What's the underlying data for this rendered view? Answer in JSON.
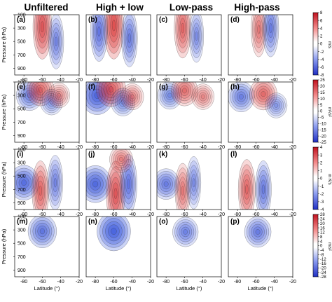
{
  "columns": [
    {
      "title": "Unfiltered"
    },
    {
      "title": "High + low"
    },
    {
      "title": "Low-pass"
    },
    {
      "title": "High-pass"
    }
  ],
  "panel_letters": [
    "(a)",
    "(b)",
    "(c)",
    "(d)",
    "(e)",
    "(f)",
    "(g)",
    "(h)",
    "(i)",
    "(j)",
    "(k)",
    "(l)",
    "(m)",
    "(n)",
    "(o)",
    "(p)"
  ],
  "y_axis_label": "Pressure (hPa)",
  "x_axis_label": "Latitude (°)",
  "x_ticks": [
    "-80",
    "-60",
    "-40",
    "-20"
  ],
  "y_ticks": [
    "100",
    "300",
    "500",
    "700",
    "900"
  ],
  "colors": {
    "positive": "#d62728",
    "negative": "#1f3fd6"
  },
  "chart_data": [
    {
      "type": "heatmap",
      "row": 1,
      "xlim": [
        -90,
        -20
      ],
      "ylim": [
        1000,
        100
      ],
      "colorbar": {
        "ticks": [
          "8",
          "6",
          "4",
          "2",
          "0",
          "-2",
          "-4",
          "-6",
          "-8"
        ],
        "unit": "m/s",
        "range": [
          -8,
          8
        ]
      },
      "panels": [
        {
          "letter": "(a)",
          "features": [
            {
              "lat": -60,
              "p": 280,
              "value": 7,
              "shape": "jet"
            },
            {
              "lat": -45,
              "p": 500,
              "value": -3,
              "shape": "jet"
            }
          ]
        },
        {
          "letter": "(b)",
          "features": [
            {
              "lat": -60,
              "p": 260,
              "value": 9,
              "shape": "jet"
            },
            {
              "lat": -76,
              "p": 350,
              "value": -5,
              "shape": "jet"
            },
            {
              "lat": -43,
              "p": 450,
              "value": -4,
              "shape": "jet"
            }
          ]
        },
        {
          "letter": "(c)",
          "features": [
            {
              "lat": -62,
              "p": 300,
              "value": 5,
              "shape": "jet"
            },
            {
              "lat": -47,
              "p": 420,
              "value": -2,
              "shape": "jet"
            }
          ]
        },
        {
          "letter": "(d)",
          "features": [
            {
              "lat": -57,
              "p": 320,
              "value": 3,
              "shape": "jet"
            },
            {
              "lat": -44,
              "p": 300,
              "value": -4,
              "shape": "jet"
            }
          ]
        }
      ]
    },
    {
      "type": "heatmap",
      "row": 2,
      "xlim": [
        -90,
        -20
      ],
      "ylim": [
        1000,
        100
      ],
      "colorbar": {
        "ticks": [
          "25",
          "20",
          "15",
          "10",
          "5",
          "0",
          "-5",
          "-10",
          "-15",
          "-20",
          "-25"
        ],
        "unit": "m²/s²",
        "range": [
          -25,
          25
        ]
      },
      "panels": [
        {
          "letter": "(e)",
          "features": [
            {
              "lat": -74,
              "p": 300,
              "value": -12,
              "shape": "blob"
            },
            {
              "lat": -62,
              "p": 220,
              "value": 14,
              "shape": "blob"
            },
            {
              "lat": -50,
              "p": 400,
              "value": -5,
              "shape": "blob"
            },
            {
              "lat": -42,
              "p": 300,
              "value": 4,
              "shape": "blob"
            }
          ]
        },
        {
          "letter": "(f)",
          "features": [
            {
              "lat": -78,
              "p": 300,
              "value": -24,
              "shape": "blob"
            },
            {
              "lat": -63,
              "p": 210,
              "value": 18,
              "shape": "blob"
            },
            {
              "lat": -50,
              "p": 400,
              "value": -8,
              "shape": "blob"
            },
            {
              "lat": -40,
              "p": 320,
              "value": 6,
              "shape": "blob"
            }
          ]
        },
        {
          "letter": "(g)",
          "features": [
            {
              "lat": -76,
              "p": 300,
              "value": -8,
              "shape": "blob"
            },
            {
              "lat": -60,
              "p": 230,
              "value": 12,
              "shape": "blob"
            },
            {
              "lat": -40,
              "p": 320,
              "value": 5,
              "shape": "blob"
            }
          ]
        },
        {
          "letter": "(h)",
          "features": [
            {
              "lat": -76,
              "p": 320,
              "value": -12,
              "shape": "blob"
            },
            {
              "lat": -52,
              "p": 280,
              "value": 14,
              "shape": "blob"
            },
            {
              "lat": -38,
              "p": 450,
              "value": -4,
              "shape": "blob"
            }
          ]
        }
      ]
    },
    {
      "type": "heatmap",
      "row": 3,
      "xlim": [
        -90,
        -20
      ],
      "ylim": [
        1000,
        100
      ],
      "colorbar": {
        "ticks": [
          "4",
          "3",
          "2",
          "1",
          "0",
          "-1",
          "-2",
          "-3",
          "-4"
        ],
        "unit": "m K/s",
        "range": [
          -4,
          4
        ]
      },
      "panels": [
        {
          "letter": "(i)",
          "features": [
            {
              "lat": -80,
              "p": 600,
              "value": -3,
              "shape": "blob"
            },
            {
              "lat": -62,
              "p": 720,
              "value": 2.5,
              "shape": "jet"
            },
            {
              "lat": -46,
              "p": 600,
              "value": -1.5,
              "shape": "jet"
            }
          ]
        },
        {
          "letter": "(j)",
          "features": [
            {
              "lat": -80,
              "p": 620,
              "value": -3.5,
              "shape": "blob"
            },
            {
              "lat": -58,
              "p": 760,
              "value": 3.5,
              "shape": "jet"
            },
            {
              "lat": -44,
              "p": 620,
              "value": -2.5,
              "shape": "jet"
            },
            {
              "lat": -52,
              "p": 250,
              "value": 1,
              "shape": "blob"
            }
          ]
        },
        {
          "letter": "(k)",
          "features": [
            {
              "lat": -80,
              "p": 620,
              "value": -2,
              "shape": "blob"
            },
            {
              "lat": -62,
              "p": 720,
              "value": 1.5,
              "shape": "jet"
            },
            {
              "lat": -50,
              "p": 600,
              "value": -1,
              "shape": "jet"
            }
          ]
        },
        {
          "letter": "(l)",
          "features": [
            {
              "lat": -70,
              "p": 700,
              "value": 2.5,
              "shape": "jet"
            },
            {
              "lat": -52,
              "p": 700,
              "value": -2,
              "shape": "jet"
            }
          ]
        }
      ]
    },
    {
      "type": "heatmap",
      "row": 4,
      "xlim": [
        -90,
        -20
      ],
      "ylim": [
        1000,
        100
      ],
      "colorbar": {
        "ticks": [
          "28",
          "24",
          "20",
          "16",
          "12",
          "8",
          "4",
          "0",
          "-4",
          "-8",
          "-12",
          "-16",
          "-20",
          "-24",
          "-28"
        ],
        "unit": "m/s²",
        "range": [
          -28,
          28
        ]
      },
      "panels": [
        {
          "letter": "(m)",
          "features": [
            {
              "lat": -60,
              "p": 320,
              "value": -18,
              "shape": "blob"
            }
          ]
        },
        {
          "letter": "(n)",
          "features": [
            {
              "lat": -60,
              "p": 320,
              "value": -28,
              "shape": "blob"
            }
          ]
        },
        {
          "letter": "(o)",
          "features": [
            {
              "lat": -59,
              "p": 330,
              "value": -12,
              "shape": "blob"
            }
          ]
        },
        {
          "letter": "(p)",
          "features": [
            {
              "lat": -58,
              "p": 330,
              "value": -14,
              "shape": "blob"
            }
          ]
        }
      ]
    }
  ]
}
